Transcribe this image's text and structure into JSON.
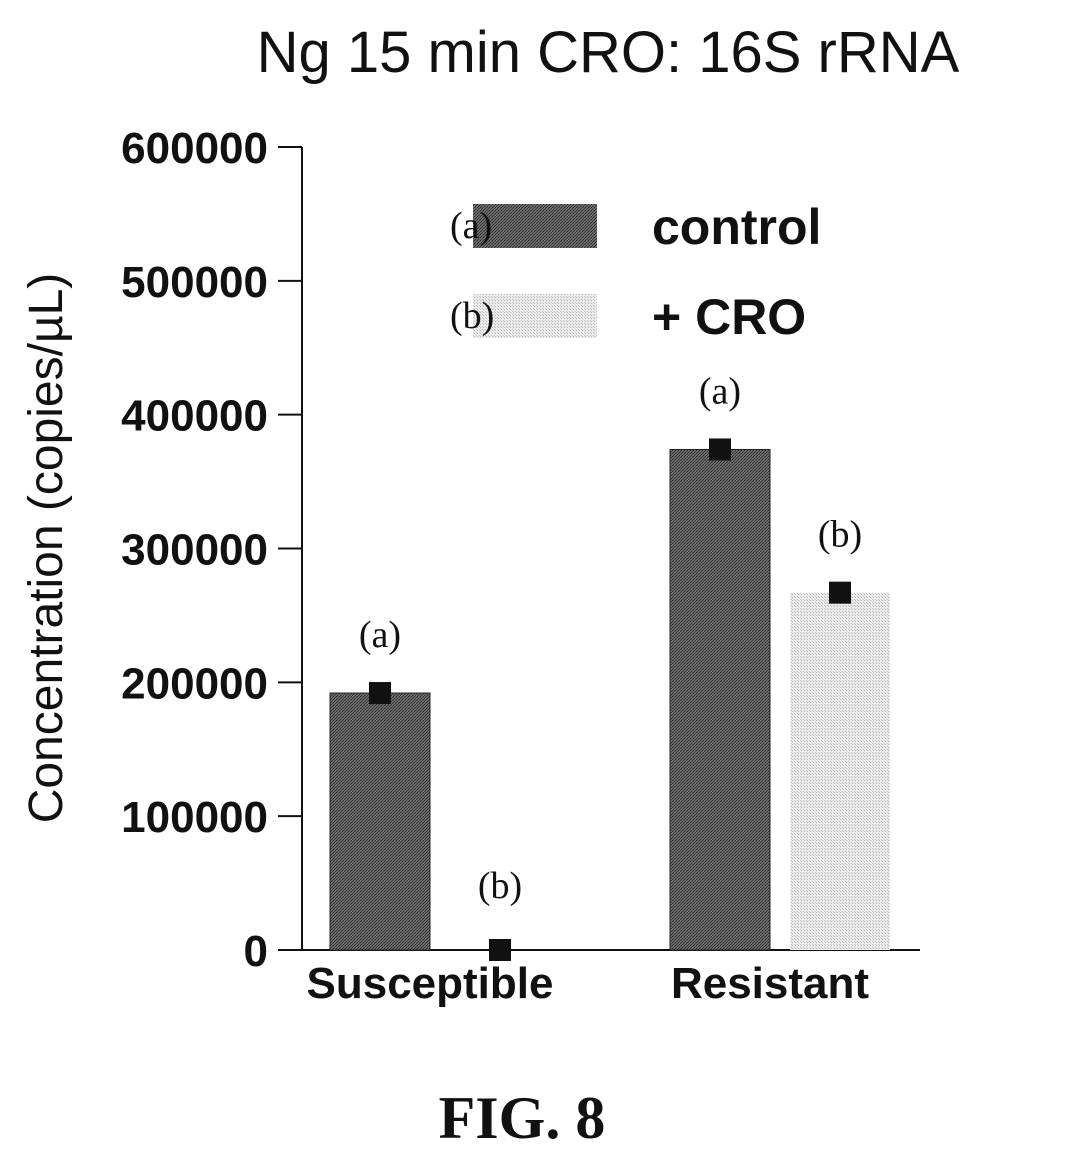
{
  "chart_data": {
    "type": "bar",
    "title": "Ng 15 min CRO: 16S rRNA",
    "xlabel": "",
    "ylabel": "Concentration (copies/µL)",
    "ylim": [
      0,
      600000
    ],
    "yticks": [
      0,
      100000,
      200000,
      300000,
      400000,
      500000,
      600000
    ],
    "ytick_labels": [
      "0",
      "100000",
      "200000",
      "300000",
      "400000",
      "500000",
      "600000"
    ],
    "categories": [
      "Susceptible",
      "Resistant"
    ],
    "series": [
      {
        "name": "control",
        "legend_marker": "(a)",
        "color": "#555555",
        "values": [
          192000,
          374000
        ],
        "annotations": [
          "(a)",
          "(a)"
        ]
      },
      {
        "name": "+ CRO",
        "legend_marker": "(b)",
        "color": "#dddddd",
        "values": [
          0,
          267000
        ],
        "annotations": [
          "(b)",
          "(b)"
        ]
      }
    ],
    "legend_position": "top-center",
    "grid": false
  },
  "figure_caption": "FIG. 8"
}
